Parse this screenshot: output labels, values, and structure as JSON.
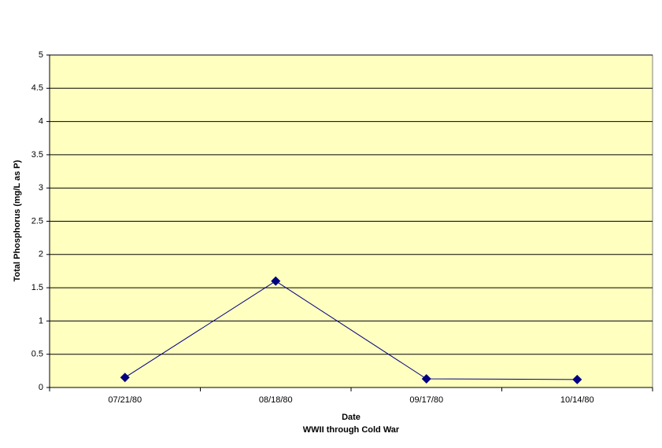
{
  "chart_data": {
    "type": "line",
    "x_label": "Date",
    "x_sublabel": "WWII through Cold War",
    "y_label": "Total Phosphorus (mg/L as P)",
    "categories": [
      "07/21/80",
      "08/18/80",
      "09/17/80",
      "10/14/80"
    ],
    "series": [
      {
        "color": "#000080",
        "values": [
          0.15,
          1.6,
          0.13,
          0.12
        ]
      }
    ],
    "ylim": [
      0,
      5
    ],
    "yticks": [
      0,
      0.5,
      1,
      1.5,
      2,
      2.5,
      3,
      3.5,
      4,
      4.5,
      5
    ],
    "grid": true,
    "plot_background": "#ffffc0"
  }
}
